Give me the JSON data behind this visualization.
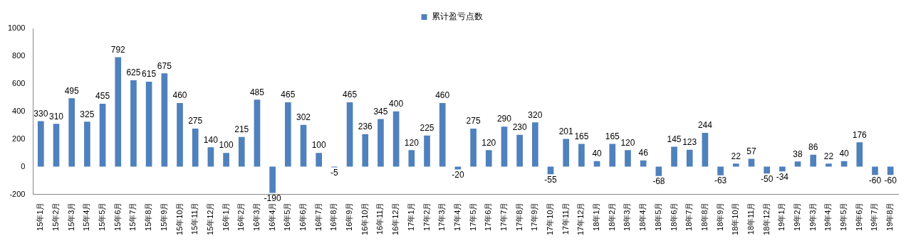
{
  "chart_data": {
    "type": "bar",
    "categories": [
      "15年1月",
      "15年2月",
      "15年3月",
      "15年4月",
      "15年5月",
      "15年6月",
      "15年7月",
      "15年8月",
      "15年9月",
      "15年10月",
      "15年11月",
      "15年12月",
      "16年1月",
      "16年2月",
      "16年3月",
      "16年4月",
      "16年5月",
      "16年6月",
      "16年7月",
      "16年8月",
      "16年9月",
      "16年10月",
      "16年11月",
      "16年12月",
      "17年1月",
      "17年2月",
      "17年3月",
      "17年4月",
      "17年5月",
      "17年6月",
      "17年7月",
      "17年8月",
      "17年9月",
      "17年10月",
      "17年11月",
      "17年12月",
      "18年1月",
      "18年2月",
      "18年3月",
      "18年4月",
      "18年5月",
      "18年6月",
      "18年7月",
      "18年8月",
      "18年9月",
      "18年10月",
      "18年11月",
      "18年12月",
      "19年1月",
      "19年2月",
      "19年3月",
      "19年4月",
      "19年5月",
      "19年6月",
      "19年7月",
      "19年8月"
    ],
    "series": [
      {
        "name": "累计盈亏点数",
        "color": "#4f81bd",
        "values": [
          330,
          310,
          495,
          325,
          455,
          792,
          625,
          615,
          675,
          460,
          275,
          140,
          100,
          215,
          485,
          -190,
          465,
          302,
          100,
          -5,
          465,
          236,
          345,
          400,
          120,
          225,
          460,
          -20,
          275,
          120,
          290,
          230,
          320,
          -55,
          201,
          165,
          40,
          165,
          120,
          46,
          -68,
          145,
          123,
          244,
          -63,
          22,
          57,
          -50,
          -34,
          38,
          86,
          22,
          40,
          176,
          -60,
          -60
        ]
      }
    ],
    "ylim": [
      -200,
      1000
    ],
    "yticks": [
      -200,
      0,
      200,
      400,
      600,
      800,
      1000
    ],
    "grid": false,
    "legend": "top",
    "data_labels": true
  }
}
